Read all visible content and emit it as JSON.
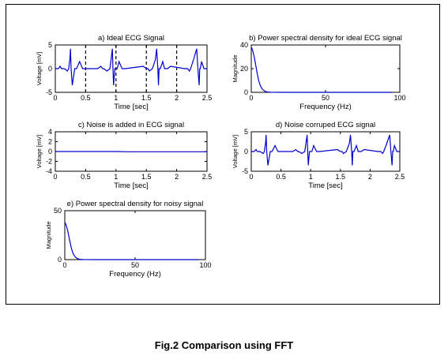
{
  "caption": "Fig.2   Comparison using FFT",
  "colors": {
    "signal": "#0000cc",
    "axes": "#000000"
  },
  "chart_data": [
    {
      "id": "a",
      "type": "line",
      "title": "a) Ideal ECG Signal",
      "xlabel": "Time [sec]",
      "ylabel": "Voltage [mV]",
      "xlim": [
        0,
        2.5
      ],
      "ylim": [
        -5,
        5
      ],
      "xticks": [
        0,
        0.5,
        1,
        1.5,
        2,
        2.5
      ],
      "xticklabels": [
        "0",
        "0.5",
        "1",
        "1.5",
        "2",
        "2.5"
      ],
      "yticks": [
        -5,
        0,
        5
      ],
      "yticklabels": [
        "-5",
        "0",
        "5"
      ],
      "dashed_vlines": [
        0.5,
        1,
        1.5,
        2
      ],
      "beats": [
        0.25,
        0.95,
        1.7,
        2.38
      ],
      "series": [
        {
          "x": [
            0,
            0.05,
            0.08,
            0.1,
            0.15,
            0.2,
            0.22,
            0.24,
            0.25,
            0.26,
            0.28,
            0.32,
            0.35,
            0.4,
            0.45,
            0.7,
            0.75,
            0.78,
            0.8,
            0.85,
            0.9,
            0.92,
            0.94,
            0.95,
            0.96,
            0.98,
            1.02,
            1.05,
            1.1,
            1.15,
            1.45,
            1.5,
            1.53,
            1.55,
            1.6,
            1.65,
            1.67,
            1.69,
            1.7,
            1.71,
            1.73,
            1.77,
            1.8,
            1.85,
            1.9,
            2.13,
            2.18,
            2.21,
            2.23,
            2.28,
            2.33,
            2.35,
            2.37,
            2.38,
            2.39,
            2.41,
            2.45,
            2.48,
            2.5
          ],
          "y": [
            0,
            0,
            0.5,
            0,
            0,
            -0.5,
            0,
            2,
            4.2,
            0,
            -3.5,
            0,
            0,
            1.5,
            0,
            0,
            0.5,
            0,
            0,
            -0.5,
            0,
            2,
            4.2,
            0,
            -3.5,
            0,
            0,
            1.5,
            0,
            0,
            0.5,
            0,
            0,
            -0.5,
            0,
            2,
            4.2,
            0,
            -3.5,
            0,
            0,
            1.5,
            0,
            0,
            0.5,
            0,
            0,
            -0.5,
            0,
            2,
            4.2,
            0,
            -3.5,
            0,
            0,
            1.5,
            0,
            0,
            0
          ]
        }
      ]
    },
    {
      "id": "b",
      "type": "line",
      "title": "b) Power spectral density for ideal ECG signal",
      "xlabel": "Frequency (Hz)",
      "ylabel": "Magnitude",
      "xlim": [
        0,
        100
      ],
      "ylim": [
        0,
        40
      ],
      "xticks": [
        0,
        50,
        100
      ],
      "xticklabels": [
        "0",
        "50",
        "100"
      ],
      "yticks": [
        0,
        20,
        40
      ],
      "yticklabels": [
        "0",
        "20",
        "40"
      ],
      "series": [
        {
          "x": [
            0,
            0.5,
            1,
            2,
            3,
            4,
            5,
            6,
            7,
            8,
            9,
            10,
            11,
            12,
            13,
            15,
            20,
            40,
            60,
            80,
            95
          ],
          "y": [
            38,
            37,
            35,
            30,
            23,
            16,
            10,
            6,
            3.5,
            2,
            1,
            0.6,
            0.3,
            0.2,
            0.1,
            0.05,
            0,
            0,
            0,
            0,
            0
          ]
        }
      ]
    },
    {
      "id": "c",
      "type": "line",
      "title": "c) Noise is added in ECG signal",
      "xlabel": "Time [sec]",
      "ylabel": "Voltage [mV]",
      "xlim": [
        0,
        2.5
      ],
      "ylim": [
        -4,
        4
      ],
      "xticks": [
        0,
        0.5,
        1,
        1.5,
        2,
        2.5
      ],
      "xticklabels": [
        "0",
        "0.5",
        "1",
        "1.5",
        "2",
        "2.5"
      ],
      "yticks": [
        -4,
        -2,
        0,
        2,
        4
      ],
      "yticklabels": [
        "-4",
        "-2",
        "0",
        "2",
        "4"
      ],
      "series": [
        {
          "x": [
            0,
            0.5,
            1.0,
            1.2,
            1.5,
            2.0,
            2.5
          ],
          "y": [
            0,
            0,
            0,
            -0.05,
            -0.05,
            -0.05,
            -0.05
          ]
        }
      ]
    },
    {
      "id": "d",
      "type": "line",
      "title": "d) Noise corruped ECG signal",
      "xlabel": "Time [sec]",
      "ylabel": "Voltage [mV]",
      "xlim": [
        0,
        2.5
      ],
      "ylim": [
        -5,
        5
      ],
      "xticks": [
        0,
        0.5,
        1,
        1.5,
        2,
        2.5
      ],
      "xticklabels": [
        "0",
        "0.5",
        "1",
        "1.5",
        "2",
        "2.5"
      ],
      "yticks": [
        -5,
        0,
        5
      ],
      "yticklabels": [
        "-5",
        "0",
        "5"
      ],
      "series": [
        {
          "x": [
            0,
            0.05,
            0.08,
            0.1,
            0.15,
            0.2,
            0.22,
            0.24,
            0.25,
            0.26,
            0.28,
            0.32,
            0.35,
            0.4,
            0.45,
            0.7,
            0.75,
            0.78,
            0.8,
            0.85,
            0.9,
            0.92,
            0.94,
            0.95,
            0.96,
            0.98,
            1.02,
            1.05,
            1.1,
            1.15,
            1.45,
            1.5,
            1.53,
            1.55,
            1.6,
            1.65,
            1.67,
            1.69,
            1.7,
            1.71,
            1.73,
            1.77,
            1.8,
            1.85,
            1.9,
            2.13,
            2.18,
            2.21,
            2.23,
            2.28,
            2.33,
            2.35,
            2.37,
            2.38,
            2.39,
            2.41,
            2.45,
            2.48,
            2.5
          ],
          "y": [
            0,
            0,
            0.5,
            0,
            0,
            -0.5,
            0,
            2,
            4.2,
            0,
            -3.5,
            0,
            0,
            1.5,
            0,
            0,
            0.5,
            0,
            0,
            -0.5,
            0,
            2,
            4.2,
            0,
            -3.5,
            0,
            0,
            1.5,
            0,
            0,
            0.5,
            0,
            0,
            -0.5,
            0,
            2,
            4.2,
            0,
            -3.5,
            0,
            0,
            1.5,
            0,
            0,
            0.5,
            0,
            0,
            -0.5,
            0,
            2,
            4.2,
            0,
            -3.5,
            0,
            0,
            1.5,
            0,
            0,
            0
          ]
        }
      ]
    },
    {
      "id": "e",
      "type": "line",
      "title": "e) Power spectral density for noisy signal",
      "xlabel": "Frequency (Hz)",
      "ylabel": "Magnitude",
      "xlim": [
        0,
        100
      ],
      "ylim": [
        0,
        50
      ],
      "xticks": [
        0,
        50,
        100
      ],
      "xticklabels": [
        "0",
        "50",
        "100"
      ],
      "yticks": [
        0,
        50
      ],
      "yticklabels": [
        "0",
        "50"
      ],
      "series": [
        {
          "x": [
            0,
            0.5,
            1,
            2,
            3,
            4,
            5,
            6,
            7,
            8,
            9,
            10,
            11,
            12,
            13,
            15,
            20,
            40,
            60,
            80,
            95
          ],
          "y": [
            38,
            37,
            35,
            30,
            23,
            16,
            10,
            6,
            3.5,
            2,
            1,
            0.6,
            0.3,
            0.2,
            0.1,
            0.05,
            0,
            0,
            0,
            0,
            0
          ]
        }
      ]
    }
  ]
}
